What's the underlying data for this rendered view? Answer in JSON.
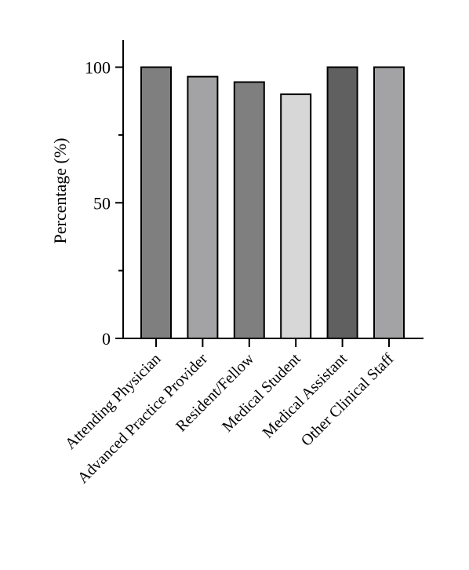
{
  "chart_data": {
    "type": "bar",
    "title": "",
    "xlabel": "",
    "ylabel": "Percentage (%)",
    "categories": [
      "Attending Physician",
      "Advanced Practice Provider",
      "Resident/Fellow",
      "Medical Student",
      "Medical Assistant",
      "Other Clinical Staff"
    ],
    "values": [
      100,
      96.5,
      94.5,
      90,
      100,
      100
    ],
    "colors": [
      "#7f7f7f",
      "#a3a3a6",
      "#7f7f7f",
      "#d7d7d7",
      "#606060",
      "#a3a3a6"
    ],
    "ylim": [
      0,
      110
    ],
    "yticks": [
      0,
      50,
      100
    ],
    "grid": false,
    "legend": "none"
  }
}
